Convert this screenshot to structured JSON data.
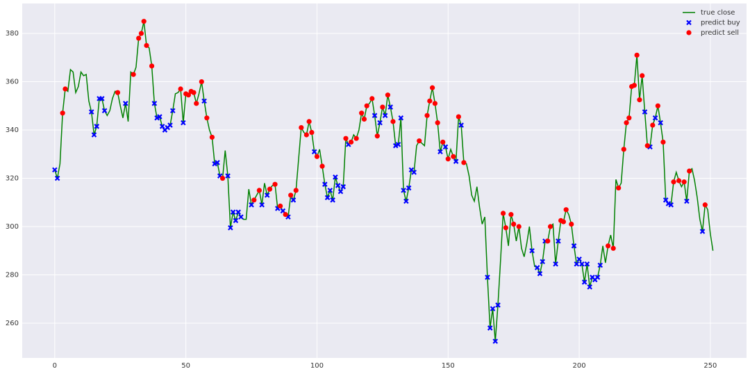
{
  "chart_data": {
    "type": "line",
    "xlim": [
      -12.4,
      263.8
    ],
    "xticks": [
      0,
      50,
      100,
      150,
      200,
      250
    ],
    "ylim": [
      245.6,
      392.4
    ],
    "yticks": [
      260,
      280,
      300,
      320,
      340,
      360,
      380
    ],
    "grid": true,
    "legend": "upper right",
    "series": [
      {
        "name": "true close",
        "color": "#008000",
        "kind": "line",
        "values": [
          323.5,
          320,
          326,
          347,
          357,
          356,
          365,
          364,
          355.5,
          358,
          364,
          362.5,
          363,
          352,
          347.5,
          338,
          341.5,
          353,
          353,
          348,
          346,
          348,
          353,
          356,
          355.5,
          350,
          345,
          351,
          343.5,
          364,
          363,
          366,
          378,
          380,
          385,
          375,
          374,
          366.5,
          351,
          345,
          345.5,
          341.5,
          340,
          341,
          342,
          348,
          355,
          355.5,
          357,
          343,
          355,
          354.5,
          356,
          355.5,
          351,
          355,
          360,
          352,
          345,
          340,
          337,
          326,
          326.5,
          321,
          320,
          331.5,
          321,
          299.5,
          306,
          302.5,
          306,
          304,
          303,
          303,
          315.5,
          309,
          311,
          313,
          315,
          309,
          318,
          313,
          315.5,
          317,
          317.5,
          307.5,
          308.5,
          306.5,
          305,
          304,
          313,
          311,
          315,
          328,
          341,
          339,
          338,
          343.5,
          339,
          331,
          329,
          332,
          325,
          317.5,
          312,
          315,
          311,
          320.5,
          317,
          314.5,
          316.5,
          336.5,
          334,
          335,
          338,
          336.5,
          340,
          347,
          344.5,
          350,
          351,
          353,
          346,
          337.5,
          343,
          349.5,
          346,
          354.5,
          349.5,
          343.5,
          333.5,
          334,
          345,
          315,
          310.5,
          316,
          323.5,
          322.5,
          333.5,
          335.5,
          334.5,
          333.5,
          346,
          352,
          357.5,
          351,
          343,
          331,
          335,
          333,
          328,
          332,
          329,
          327,
          345.5,
          342,
          326.5,
          326,
          321,
          313,
          310.5,
          316.5,
          308,
          301,
          304,
          279,
          258,
          266,
          252.5,
          267.5,
          286,
          305.5,
          299.5,
          292,
          305,
          301,
          294,
          300,
          291,
          287.5,
          293,
          300,
          290,
          283.5,
          283,
          280.5,
          285.5,
          294,
          294,
          300,
          301,
          284.5,
          294,
          302.5,
          302,
          307,
          305,
          301,
          292,
          284.5,
          286.5,
          284.5,
          277,
          284.5,
          275,
          279,
          278,
          279,
          284,
          292,
          285,
          292,
          296.5,
          291,
          319.5,
          316,
          318,
          332,
          343,
          345,
          358,
          358.5,
          371,
          352.5,
          362.5,
          347.5,
          333.5,
          333,
          342,
          345,
          350,
          343,
          335,
          311,
          309.5,
          309,
          318.5,
          322.5,
          319,
          316.5,
          318.5,
          310.5,
          323,
          324,
          319,
          312,
          303,
          298,
          309,
          307,
          297,
          290
        ]
      },
      {
        "name": "predict buy",
        "color": "#0000ff",
        "kind": "scatter",
        "marker": "x",
        "x": [
          0,
          1,
          14,
          15,
          16,
          17,
          18,
          19,
          27,
          38,
          39,
          40,
          41,
          42,
          43,
          44,
          45,
          49,
          57,
          61,
          62,
          63,
          66,
          67,
          68,
          69,
          70,
          71,
          75,
          79,
          81,
          85,
          87,
          89,
          91,
          99,
          103,
          104,
          105,
          106,
          107,
          108,
          109,
          110,
          112,
          122,
          124,
          126,
          128,
          130,
          131,
          132,
          133,
          134,
          135,
          136,
          137,
          147,
          149,
          153,
          155,
          165,
          166,
          167,
          168,
          169,
          182,
          184,
          185,
          186,
          187,
          191,
          192,
          198,
          199,
          200,
          201,
          202,
          203,
          204,
          205,
          206,
          207,
          208,
          225,
          227,
          229,
          231,
          233,
          234,
          235,
          241,
          247
        ],
        "values": [
          323.5,
          320,
          347.5,
          338,
          341.5,
          353,
          353,
          348,
          351,
          351,
          345,
          345.5,
          341.5,
          340,
          341,
          342,
          348,
          343,
          352,
          326,
          326.5,
          321,
          321,
          299.5,
          306,
          302.5,
          306,
          304,
          309,
          309,
          313,
          307.5,
          306.5,
          304,
          311,
          331,
          317.5,
          312,
          315,
          311,
          320.5,
          317,
          314.5,
          316.5,
          334,
          346,
          343,
          346,
          349.5,
          333.5,
          334,
          345,
          315,
          310.5,
          316,
          323.5,
          322.5,
          331,
          333,
          327,
          342,
          279,
          258,
          266,
          252.5,
          267.5,
          290,
          283,
          280.5,
          285.5,
          294,
          284.5,
          294,
          292,
          284.5,
          286.5,
          284.5,
          277,
          284.5,
          275,
          279,
          278,
          279,
          284,
          347.5,
          333,
          345,
          343,
          311,
          309.5,
          309,
          310.5,
          298
        ]
      },
      {
        "name": "predict sell",
        "color": "#ff0000",
        "kind": "scatter",
        "marker": "o",
        "x": [
          3,
          4,
          24,
          30,
          32,
          33,
          34,
          35,
          37,
          48,
          50,
          51,
          52,
          53,
          54,
          56,
          58,
          60,
          64,
          76,
          78,
          82,
          84,
          86,
          88,
          90,
          92,
          94,
          96,
          97,
          98,
          100,
          102,
          111,
          113,
          115,
          117,
          118,
          119,
          121,
          123,
          125,
          127,
          129,
          139,
          142,
          143,
          144,
          145,
          146,
          148,
          150,
          152,
          154,
          156,
          171,
          172,
          174,
          175,
          177,
          188,
          189,
          193,
          194,
          195,
          197,
          211,
          213,
          215,
          217,
          218,
          219,
          220,
          221,
          222,
          223,
          224,
          226,
          228,
          230,
          232,
          236,
          238,
          240,
          242,
          248
        ],
        "values": [
          347,
          357,
          355.5,
          363,
          378,
          380,
          385,
          375,
          366.5,
          357,
          355,
          354.5,
          356,
          355.5,
          351,
          360,
          345,
          337,
          320,
          311,
          315,
          315.5,
          317.5,
          308.5,
          305,
          313,
          315,
          341,
          338,
          343.5,
          339,
          329,
          325,
          336.5,
          335,
          336.5,
          347,
          344.5,
          350,
          353,
          337.5,
          349.5,
          354.5,
          343.5,
          335.5,
          346,
          352,
          357.5,
          351,
          343,
          335,
          328,
          329,
          345.5,
          326.5,
          305.5,
          299.5,
          305,
          301,
          300,
          294,
          300,
          302.5,
          302,
          307,
          301,
          292,
          291,
          316,
          332,
          343,
          345,
          358,
          358.5,
          371,
          352.5,
          362.5,
          333.5,
          342,
          350,
          335,
          318.5,
          319,
          318.5,
          323,
          309
        ]
      }
    ]
  }
}
